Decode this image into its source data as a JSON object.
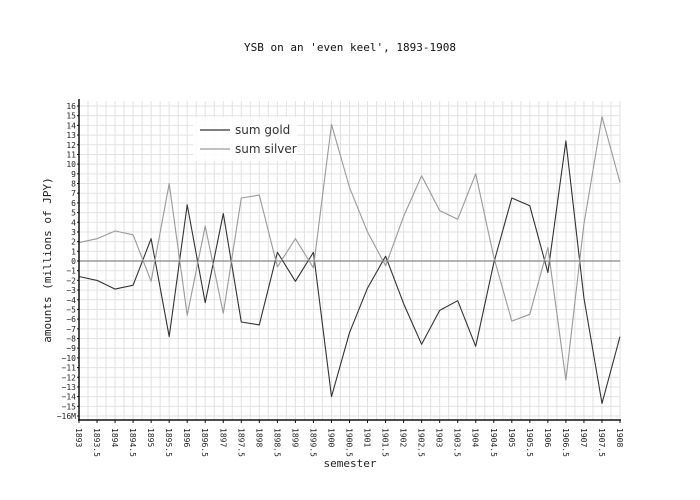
{
  "chart_data": {
    "type": "line",
    "title": "YSB on an 'even keel', 1893-1908",
    "xlabel": "semester",
    "ylabel": "amounts (millions of JPY)",
    "x_tick_labels": [
      "1893",
      "1893.5",
      "1894",
      "1894.5",
      "1895",
      "1895.5",
      "1896",
      "1896.5",
      "1897",
      "1897.5",
      "1898",
      "1898.5",
      "1899",
      "1899.5",
      "1900",
      "1900.5",
      "1901",
      "1901.5",
      "1902",
      "1902.5",
      "1903",
      "1903.5",
      "1904",
      "1904.5",
      "1905",
      "1905.5",
      "1906",
      "1906.5",
      "1907",
      "1907.5",
      "1908"
    ],
    "y_tick_labels": [
      "−16M",
      "−15",
      "−14",
      "−13",
      "−12",
      "−11",
      "−10",
      "−9",
      "−8",
      "−7",
      "−6",
      "−5",
      "−4",
      "−3",
      "−2",
      "−1",
      "0",
      "1",
      "2",
      "3",
      "4",
      "5",
      "6",
      "7",
      "8",
      "9",
      "10",
      "11",
      "12",
      "13",
      "14",
      "15",
      "16"
    ],
    "xlim": [
      1893,
      1908
    ],
    "ylim": [
      -16,
      16
    ],
    "grid": true,
    "legend_position": "top-left",
    "series": [
      {
        "name": "sum gold",
        "color": "#333333",
        "x": [
          1893,
          1893.5,
          1894,
          1894.5,
          1895,
          1895.5,
          1896,
          1896.5,
          1897,
          1897.5,
          1898,
          1898.5,
          1899,
          1899.5,
          1900,
          1900.5,
          1901,
          1901.5,
          1902,
          1902.5,
          1903,
          1903.5,
          1904,
          1904.5,
          1905,
          1905.5,
          1906,
          1906.5,
          1907,
          1907.5,
          1908
        ],
        "values": [
          -1.6,
          -2.0,
          -2.9,
          -2.5,
          2.3,
          -7.8,
          5.8,
          -4.3,
          4.9,
          -6.3,
          -6.6,
          0.9,
          -2.1,
          0.9,
          -14.0,
          -7.4,
          -2.8,
          0.5,
          -4.4,
          -8.6,
          -5.1,
          -4.1,
          -8.8,
          -0.2,
          6.5,
          5.7,
          -1.2,
          12.4,
          -3.8,
          -14.7,
          -7.8
        ]
      },
      {
        "name": "sum silver",
        "color": "#999999",
        "x": [
          1893,
          1893.5,
          1894,
          1894.5,
          1895,
          1895.5,
          1896,
          1896.5,
          1897,
          1897.5,
          1898,
          1898.5,
          1899,
          1899.5,
          1900,
          1900.5,
          1901,
          1901.5,
          1902,
          1902.5,
          1903,
          1903.5,
          1904,
          1904.5,
          1905,
          1905.5,
          1906,
          1906.5,
          1907,
          1907.5,
          1908
        ],
        "values": [
          1.9,
          2.3,
          3.1,
          2.7,
          -2.1,
          8.0,
          -5.6,
          3.6,
          -5.4,
          6.5,
          6.8,
          -0.6,
          2.3,
          -0.7,
          14.1,
          7.6,
          3.0,
          -0.5,
          4.6,
          8.8,
          5.2,
          4.3,
          9.0,
          0.4,
          -6.2,
          -5.5,
          1.4,
          -12.3,
          3.8,
          14.9,
          8.1
        ]
      }
    ]
  }
}
